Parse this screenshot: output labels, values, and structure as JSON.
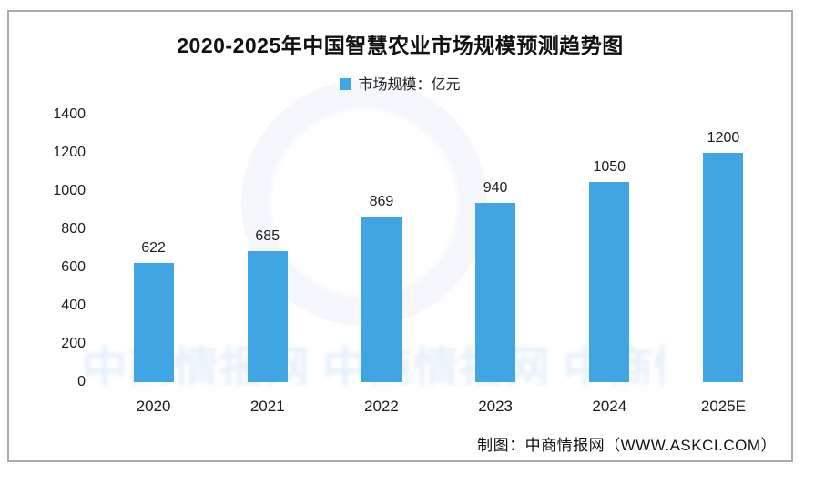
{
  "chart_data": {
    "type": "bar",
    "title": "2020-2025年中国智慧农业市场规模预测趋势图",
    "legend": [
      {
        "label": "市场规模：亿元",
        "color": "#3fa6e3"
      }
    ],
    "legend_position": "top",
    "categories": [
      "2020",
      "2021",
      "2022",
      "2023",
      "2024",
      "2025E"
    ],
    "values": [
      622,
      685,
      869,
      940,
      1050,
      1200
    ],
    "yticks": [
      0,
      200,
      400,
      600,
      800,
      1000,
      1200,
      1400
    ],
    "ylim": [
      0,
      1400
    ],
    "xlabel": "",
    "ylabel": "",
    "grid": false,
    "bar_color": "#3fa6e3"
  },
  "footer": {
    "credit": "制图：中商情报网（WWW.ASKCI.COM）"
  },
  "watermark": {
    "ghost_text": "中商情报网 中商情报网 中商情报网"
  }
}
